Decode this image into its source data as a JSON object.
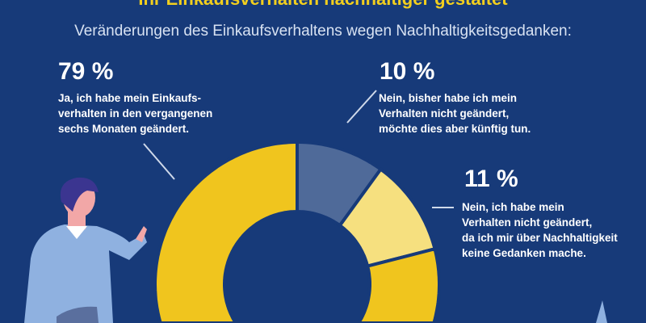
{
  "header": {
    "title": "Ihr Einkaufsverhalten nachhaltiger gestaltet",
    "subtitle": "Veränderungen des Einkaufsverhaltens wegen Nachhaltigkeitsgedanken:"
  },
  "chart_data": {
    "type": "pie",
    "variant": "donut",
    "start": "top, clockwise",
    "slices": [
      {
        "label_pct": "10 %",
        "value": 10,
        "text": [
          "Nein, bisher habe ich mein",
          "Verhalten nicht geändert,",
          "möchte dies aber künftig tun."
        ],
        "color": "#4f6a99"
      },
      {
        "label_pct": "11 %",
        "value": 11,
        "text": [
          "Nein, ich habe mein",
          "Verhalten nicht geändert,",
          "da ich mir über Nachhaltigkeit",
          "keine Gedanken mache."
        ],
        "color": "#f6e07f"
      },
      {
        "label_pct": "79 %",
        "value": 79,
        "text": [
          "Ja, ich habe mein Einkaufs-",
          "verhalten in den vergangenen",
          "sechs Monaten geändert."
        ],
        "color": "#f0c51e"
      }
    ]
  },
  "colors": {
    "background": "#173a79",
    "title": "#f2cf1e"
  }
}
